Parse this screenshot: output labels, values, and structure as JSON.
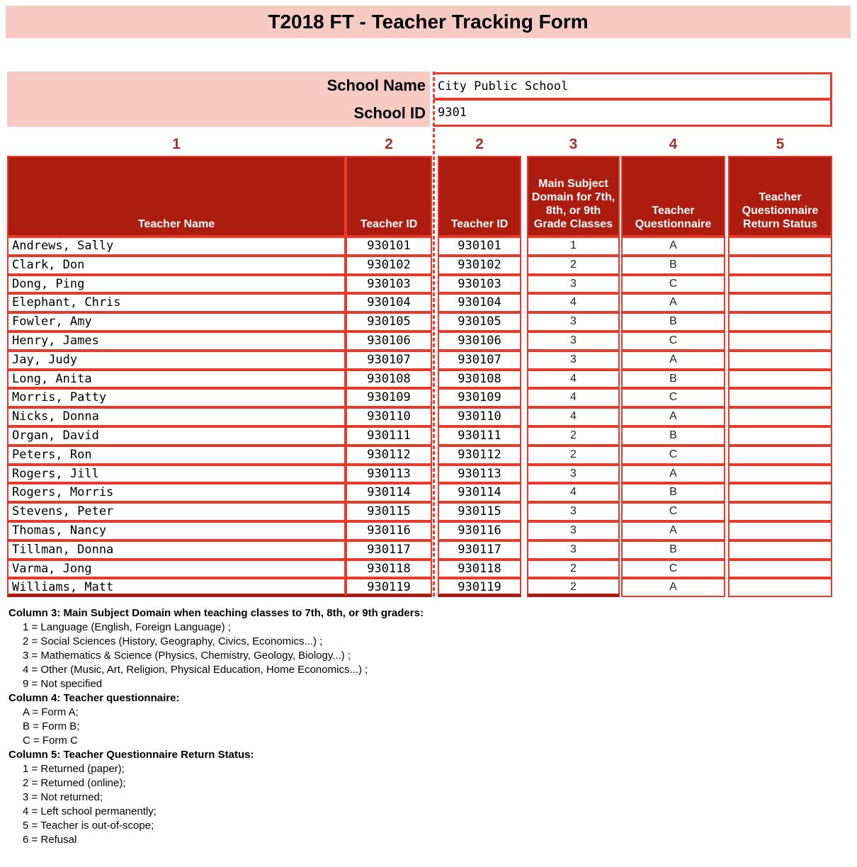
{
  "title": "T2018 FT - Teacher Tracking Form",
  "school": {
    "name_label": "School Name",
    "name_value": "City Public School",
    "id_label": "School ID",
    "id_value": "9301"
  },
  "columns": [
    {
      "number": "1",
      "header": "Teacher Name",
      "field": "name"
    },
    {
      "number": "2",
      "header": "Teacher ID",
      "field": "id"
    },
    {
      "number": "2",
      "header": "Teacher ID",
      "field": "id2"
    },
    {
      "number": "3",
      "header": "Main Subject Domain for 7th, 8th, or 9th Grade Classes",
      "field": "domain"
    },
    {
      "number": "4",
      "header": "Teacher Questionnaire",
      "field": "questionnaire"
    },
    {
      "number": "5",
      "header": "Teacher Questionnaire Return Status",
      "field": "return_status"
    }
  ],
  "teachers": [
    {
      "name": "Andrews, Sally",
      "id": "930101",
      "id2": "930101",
      "domain": "1",
      "questionnaire": "A",
      "return_status": ""
    },
    {
      "name": "Clark, Don",
      "id": "930102",
      "id2": "930102",
      "domain": "2",
      "questionnaire": "B",
      "return_status": ""
    },
    {
      "name": "Dong, Ping",
      "id": "930103",
      "id2": "930103",
      "domain": "3",
      "questionnaire": "C",
      "return_status": ""
    },
    {
      "name": "Elephant, Chris",
      "id": "930104",
      "id2": "930104",
      "domain": "4",
      "questionnaire": "A",
      "return_status": ""
    },
    {
      "name": "Fowler, Amy",
      "id": "930105",
      "id2": "930105",
      "domain": "3",
      "questionnaire": "B",
      "return_status": ""
    },
    {
      "name": "Henry, James",
      "id": "930106",
      "id2": "930106",
      "domain": "3",
      "questionnaire": "C",
      "return_status": ""
    },
    {
      "name": "Jay, Judy",
      "id": "930107",
      "id2": "930107",
      "domain": "3",
      "questionnaire": "A",
      "return_status": ""
    },
    {
      "name": "Long, Anita",
      "id": "930108",
      "id2": "930108",
      "domain": "4",
      "questionnaire": "B",
      "return_status": ""
    },
    {
      "name": "Morris, Patty",
      "id": "930109",
      "id2": "930109",
      "domain": "4",
      "questionnaire": "C",
      "return_status": ""
    },
    {
      "name": "Nicks, Donna",
      "id": "930110",
      "id2": "930110",
      "domain": "4",
      "questionnaire": "A",
      "return_status": ""
    },
    {
      "name": "Organ, David",
      "id": "930111",
      "id2": "930111",
      "domain": "2",
      "questionnaire": "B",
      "return_status": ""
    },
    {
      "name": "Peters, Ron",
      "id": "930112",
      "id2": "930112",
      "domain": "2",
      "questionnaire": "C",
      "return_status": ""
    },
    {
      "name": "Rogers, Jill",
      "id": "930113",
      "id2": "930113",
      "domain": "3",
      "questionnaire": "A",
      "return_status": ""
    },
    {
      "name": "Rogers, Morris",
      "id": "930114",
      "id2": "930114",
      "domain": "4",
      "questionnaire": "B",
      "return_status": ""
    },
    {
      "name": "Stevens, Peter",
      "id": "930115",
      "id2": "930115",
      "domain": "3",
      "questionnaire": "C",
      "return_status": ""
    },
    {
      "name": "Thomas, Nancy",
      "id": "930116",
      "id2": "930116",
      "domain": "3",
      "questionnaire": "A",
      "return_status": ""
    },
    {
      "name": "Tillman, Donna",
      "id": "930117",
      "id2": "930117",
      "domain": "3",
      "questionnaire": "B",
      "return_status": ""
    },
    {
      "name": "Varma, Jong",
      "id": "930118",
      "id2": "930118",
      "domain": "2",
      "questionnaire": "C",
      "return_status": ""
    },
    {
      "name": "Williams, Matt",
      "id": "930119",
      "id2": "930119",
      "domain": "2",
      "questionnaire": "A",
      "return_status": ""
    }
  ],
  "notes": [
    {
      "heading": "Column 3: Main Subject Domain when teaching classes to 7th, 8th, or 9th graders:",
      "items": [
        "1 = Language (English, Foreign Language) ;",
        "2 = Social Sciences (History, Geography, Civics, Economics...) ;",
        "3 = Mathematics & Science (Physics, Chemistry, Geology, Biology...) ;",
        "4 = Other (Music, Art, Religion, Physical Education, Home Economics...) ;",
        "9 = Not specified"
      ]
    },
    {
      "heading": "Column 4: Teacher questionnaire:",
      "items": [
        "A = Form A;",
        "B = Form B;",
        "C = Form C"
      ]
    },
    {
      "heading": "Column 5: Teacher Questionnaire Return Status:",
      "items": [
        "1 = Returned (paper);",
        "2 = Returned (online);",
        "3 = Not returned;",
        "4 = Left school permanently;",
        "5 = Teacher is out-of-scope;",
        "6 = Refusal"
      ]
    }
  ],
  "colors": {
    "banner_pink": "#F8CAC4",
    "header_dark_red": "#AC1C0F",
    "border_bright_red": "#E83A2B",
    "column_number_red": "#A2332B"
  }
}
